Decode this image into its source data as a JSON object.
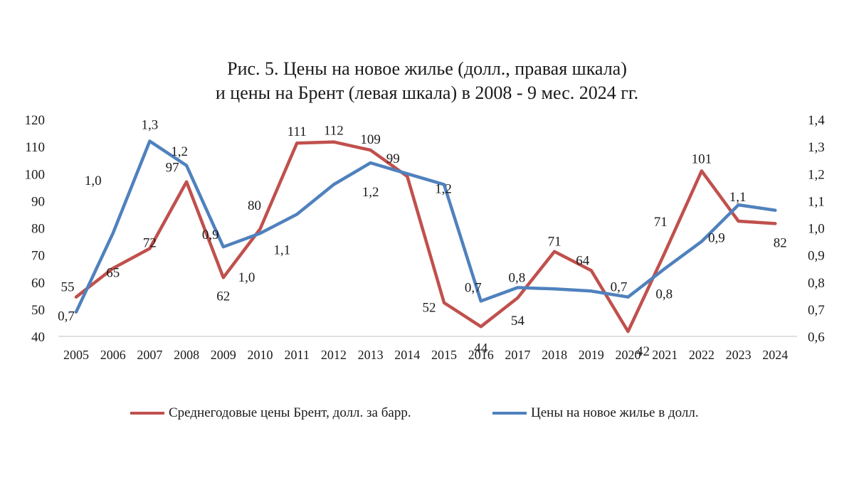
{
  "chart_data": {
    "type": "line",
    "title_lines": [
      "Рис. 5. Цены на новое жилье (долл., правая шкала)",
      "и цены на Брент (левая шкала) в 2008 - 9 мес. 2024 гг."
    ],
    "categories": [
      "2005",
      "2006",
      "2007",
      "2008",
      "2009",
      "2010",
      "2011",
      "2012",
      "2013",
      "2014",
      "2015",
      "2016",
      "2017",
      "2018",
      "2019",
      "2020",
      "2021",
      "2022",
      "2023",
      "2024"
    ],
    "left_axis": {
      "min": 40,
      "max": 120,
      "step": 10,
      "ticks": [
        "40",
        "50",
        "60",
        "70",
        "80",
        "90",
        "100",
        "110",
        "120"
      ]
    },
    "right_axis": {
      "min": 0.6,
      "max": 1.4,
      "step": 0.1,
      "ticks": [
        "0,6",
        "0,7",
        "0,8",
        "0,9",
        "1,0",
        "1,1",
        "1,2",
        "1,3",
        "1,4"
      ]
    },
    "grid": false,
    "legend_position": "bottom",
    "series": [
      {
        "name": "Среднегодовые цены Брент, долл. за барр.",
        "axis": "left",
        "color": "#c0504d",
        "values": [
          54.5,
          65.1,
          72.4,
          97.0,
          61.7,
          79.6,
          111.3,
          111.7,
          108.7,
          99.0,
          52.4,
          43.6,
          54.2,
          71.3,
          64.3,
          41.8,
          70.9,
          101.0,
          82.5,
          81.6
        ],
        "labels": [
          "55",
          "65",
          "72",
          "97",
          "62",
          "80",
          "111",
          "112",
          "109",
          "99",
          "52",
          "44",
          "54",
          "71",
          "64",
          "42",
          "71",
          "101",
          "",
          "82"
        ]
      },
      {
        "name": "Цены на новое жилье в долл.",
        "axis": "right",
        "color": "#4f81bd",
        "values": [
          0.69,
          0.98,
          1.32,
          1.23,
          0.93,
          0.98,
          1.05,
          1.16,
          1.24,
          1.2,
          1.16,
          0.73,
          0.78,
          0.775,
          0.767,
          0.745,
          0.85,
          0.95,
          1.085,
          1.065
        ],
        "labels": [
          "0,7",
          "1,0",
          "1,3",
          "1,2",
          "0,9",
          "1,0",
          "1,1",
          "",
          "1,2",
          "",
          "1,2",
          "0,7",
          "0,8",
          "",
          "",
          "0,7",
          "0,8",
          "0,9",
          "1,1",
          ""
        ]
      }
    ]
  }
}
